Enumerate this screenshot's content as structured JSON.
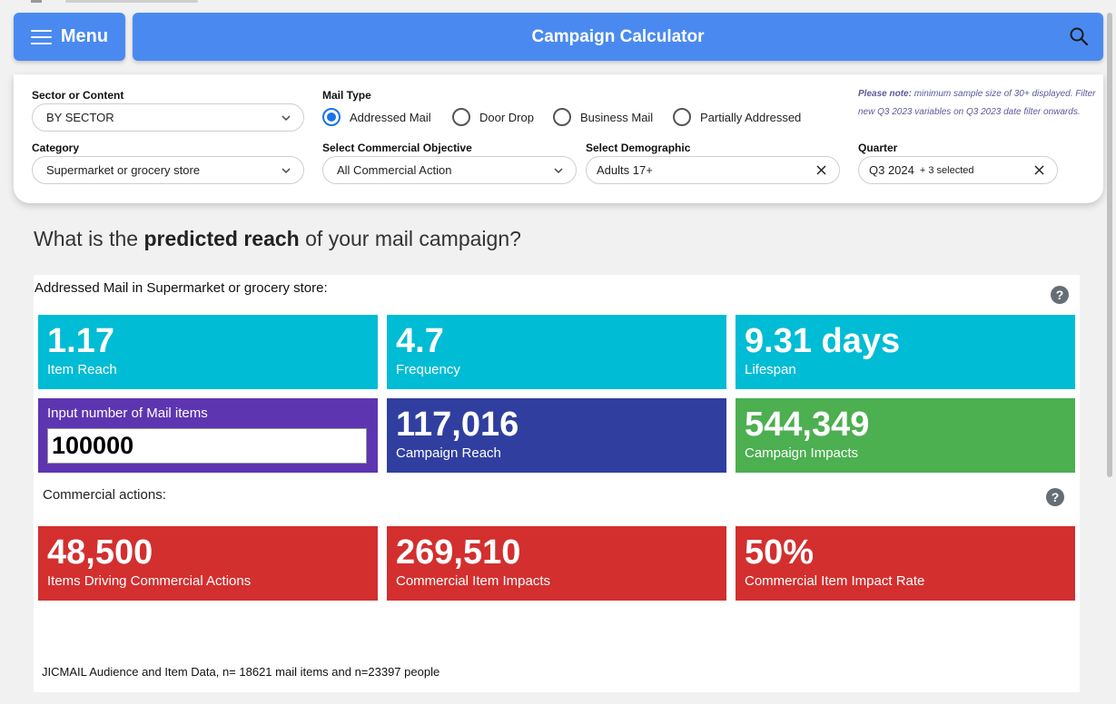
{
  "header": {
    "menu_label": "Menu",
    "title": "Campaign Calculator"
  },
  "filters": {
    "sector": {
      "label": "Sector or Content",
      "value": "BY SECTOR"
    },
    "category": {
      "label": "Category",
      "value": "Supermarket or grocery store"
    },
    "mail_type": {
      "label": "Mail Type",
      "options": [
        "Addressed Mail",
        "Door Drop",
        "Business Mail",
        "Partially Addressed"
      ],
      "selected": "Addressed Mail"
    },
    "objective": {
      "label": "Select Commercial Objective",
      "value": "All Commercial Action"
    },
    "demographic": {
      "label": "Select Demographic",
      "value": "Adults 17+"
    },
    "quarter": {
      "label": "Quarter",
      "value": "Q3 2024",
      "extra": "+ 3 selected"
    },
    "note": {
      "bold": "Please note:",
      "text": " minimum sample size of 30+ displayed. Filter new Q3 2023 variables on Q3 2023 date filter onwards."
    }
  },
  "main": {
    "question_pre": "What is the ",
    "question_bold": "predicted reach",
    "question_post": " of your mail campaign?",
    "subtitle": "Addressed Mail in Supermarket or grocery store:",
    "metrics": [
      {
        "value": "1.17",
        "label": "Item Reach"
      },
      {
        "value": "4.7",
        "label": "Frequency"
      },
      {
        "value": "9.31 days",
        "label": "Lifespan"
      }
    ],
    "input": {
      "label": "Input number of Mail items",
      "value": "100000"
    },
    "campaign": [
      {
        "value": "117,016",
        "label": "Campaign Reach"
      },
      {
        "value": "544,349",
        "label": "Campaign Impacts"
      }
    ],
    "commercial_label": "Commercial actions:",
    "commercial": [
      {
        "value": "48,500",
        "label": "Items Driving Commercial Actions"
      },
      {
        "value": "269,510",
        "label": "Commercial Item Impacts"
      },
      {
        "value": "50%",
        "label": "Commercial Item Impact Rate"
      }
    ],
    "footer": "JICMAIL Audience and Item Data, n= 18621 mail items and n=23397 people",
    "help_symbol": "?"
  },
  "icons": {
    "menu": "hamburger-icon",
    "search": "search-icon",
    "dropdown": "chevron-down-icon",
    "clear": "close-icon",
    "help": "help-icon"
  },
  "colors": {
    "header": "#4a8af0",
    "cyan": "#00bcd4",
    "navy": "#303f9f",
    "green": "#4caf50",
    "red": "#d32f2f",
    "purple": "#5e35b1",
    "radio_active": "#1a73e8"
  }
}
